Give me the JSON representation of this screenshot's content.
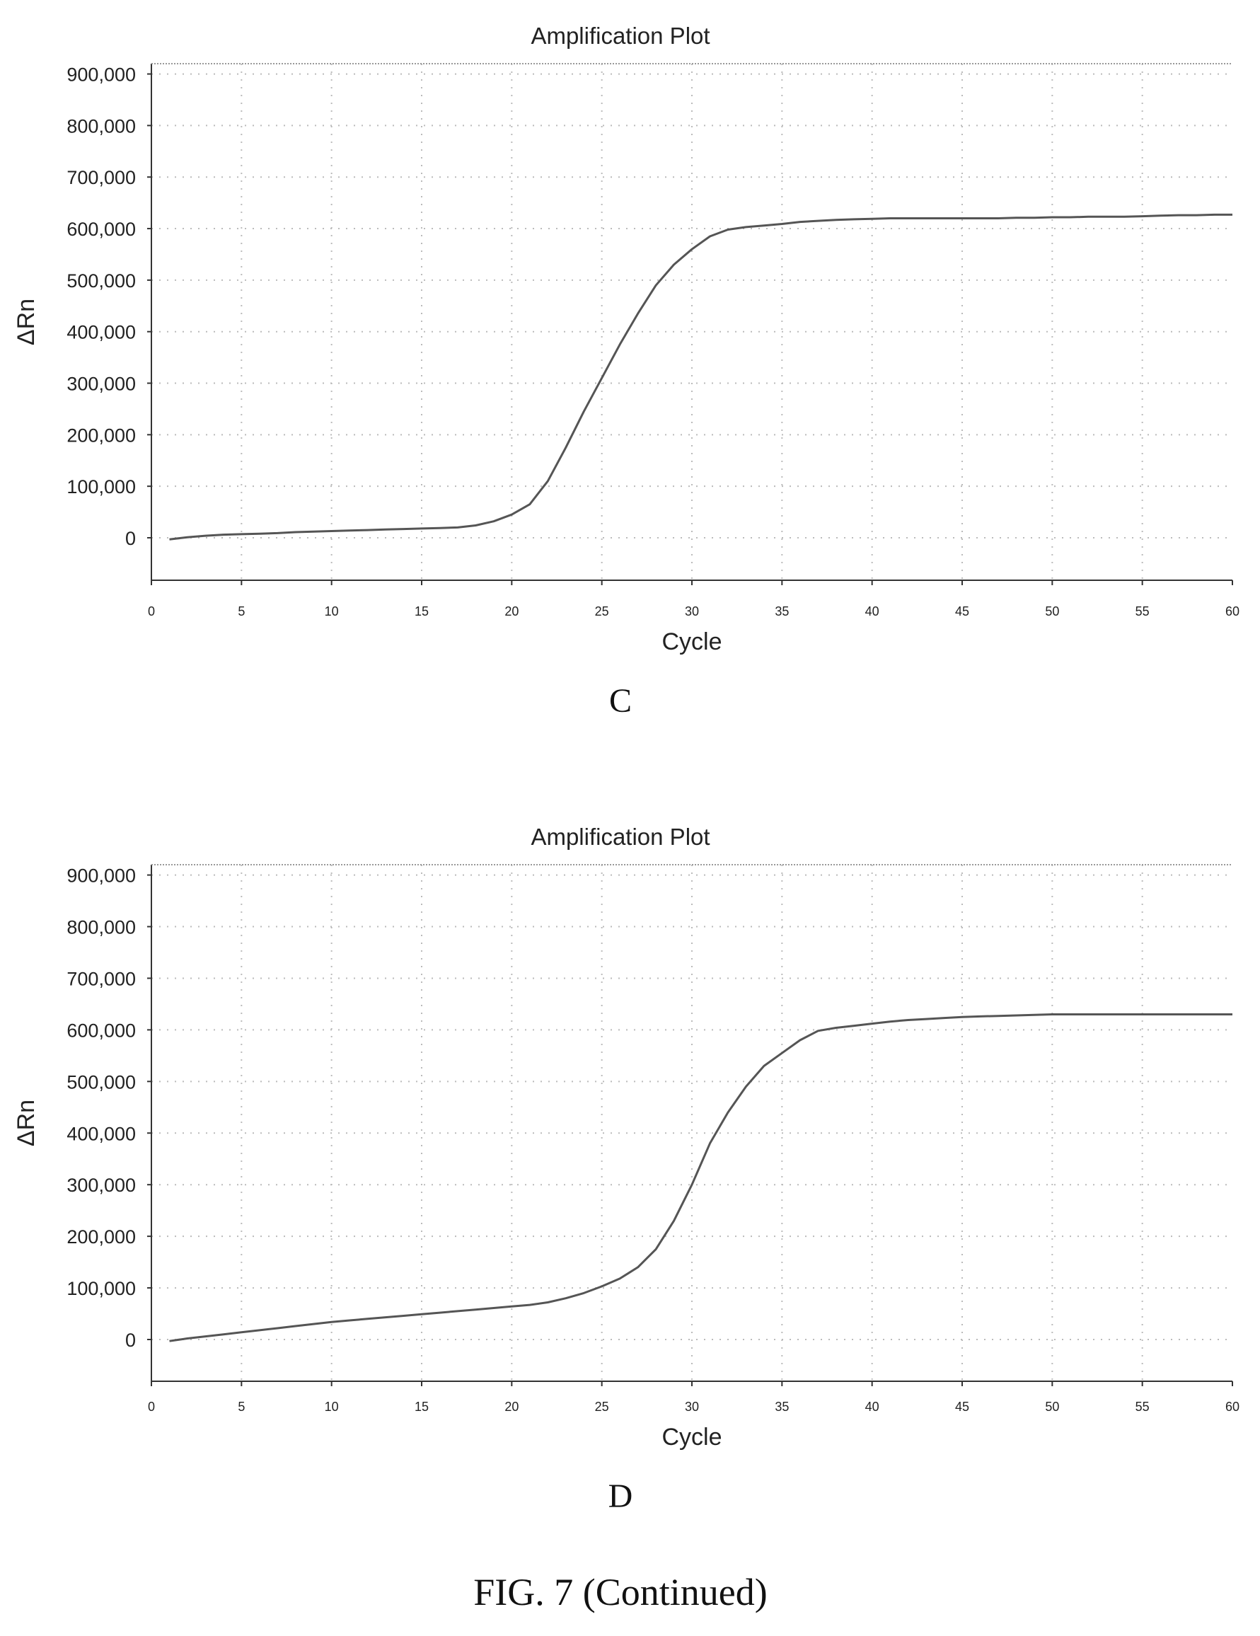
{
  "figure_caption": "FIG. 7 (Continued)",
  "chart_data": [
    {
      "panel_label": "C",
      "type": "line",
      "title": "Amplification Plot",
      "xlabel": "Cycle",
      "ylabel": "ΔRn",
      "xlim": [
        0,
        60
      ],
      "ylim": [
        -80000,
        920000
      ],
      "xticks": [
        0,
        5,
        10,
        15,
        20,
        25,
        30,
        35,
        40,
        45,
        50,
        55,
        60
      ],
      "xtick_labels": [
        "0",
        "5",
        "10",
        "15",
        "20",
        "25",
        "30",
        "35",
        "40",
        "45",
        "50",
        "55",
        "60"
      ],
      "yticks": [
        0,
        100000,
        200000,
        300000,
        400000,
        500000,
        600000,
        700000,
        800000,
        900000
      ],
      "ytick_labels": [
        "0",
        "100,000",
        "200,000",
        "300,000",
        "400,000",
        "500,000",
        "600,000",
        "700,000",
        "800,000",
        "900,000"
      ],
      "grid": true,
      "series": [
        {
          "color": "#555555",
          "x": [
            1,
            2,
            3,
            4,
            5,
            6,
            7,
            8,
            9,
            10,
            11,
            12,
            13,
            14,
            15,
            16,
            17,
            18,
            19,
            20,
            21,
            22,
            23,
            24,
            25,
            26,
            27,
            28,
            29,
            30,
            31,
            32,
            33,
            34,
            35,
            36,
            37,
            38,
            39,
            40,
            41,
            42,
            43,
            44,
            45,
            46,
            47,
            48,
            49,
            50,
            51,
            52,
            53,
            54,
            55,
            56,
            57,
            58,
            59,
            60
          ],
          "y": [
            -3000,
            1000,
            4000,
            6000,
            7000,
            8000,
            9000,
            11000,
            12000,
            13000,
            14000,
            15000,
            16000,
            17000,
            18000,
            19000,
            20000,
            24000,
            32000,
            45000,
            65000,
            110000,
            175000,
            245000,
            310000,
            375000,
            435000,
            490000,
            530000,
            560000,
            585000,
            598000,
            603000,
            606000,
            609000,
            613000,
            615000,
            617000,
            618000,
            619000,
            620000,
            620000,
            620000,
            620000,
            620000,
            620000,
            620000,
            621000,
            621000,
            622000,
            622000,
            623000,
            623000,
            623000,
            624000,
            625000,
            626000,
            626000,
            627000,
            627000
          ]
        }
      ]
    },
    {
      "panel_label": "D",
      "type": "line",
      "title": "Amplification Plot",
      "xlabel": "Cycle",
      "ylabel": "ΔRn",
      "xlim": [
        0,
        60
      ],
      "ylim": [
        -80000,
        920000
      ],
      "xticks": [
        0,
        5,
        10,
        15,
        20,
        25,
        30,
        35,
        40,
        45,
        50,
        55,
        60
      ],
      "xtick_labels": [
        "0",
        "5",
        "10",
        "15",
        "20",
        "25",
        "30",
        "35",
        "40",
        "45",
        "50",
        "55",
        "60"
      ],
      "yticks": [
        0,
        100000,
        200000,
        300000,
        400000,
        500000,
        600000,
        700000,
        800000,
        900000
      ],
      "ytick_labels": [
        "0",
        "100,000",
        "200,000",
        "300,000",
        "400,000",
        "500,000",
        "600,000",
        "700,000",
        "800,000",
        "900,000"
      ],
      "grid": true,
      "series": [
        {
          "color": "#555555",
          "x": [
            1,
            2,
            3,
            4,
            5,
            6,
            7,
            8,
            9,
            10,
            11,
            12,
            13,
            14,
            15,
            16,
            17,
            18,
            19,
            20,
            21,
            22,
            23,
            24,
            25,
            26,
            27,
            28,
            29,
            30,
            31,
            32,
            33,
            34,
            35,
            36,
            37,
            38,
            39,
            40,
            41,
            42,
            43,
            44,
            45,
            46,
            47,
            48,
            49,
            50,
            51,
            52,
            53,
            54,
            55,
            56,
            57,
            58,
            59,
            60
          ],
          "y": [
            -3000,
            2000,
            6000,
            10000,
            14000,
            18000,
            22000,
            26000,
            30000,
            34000,
            37000,
            40000,
            43000,
            46000,
            49000,
            52000,
            55000,
            58000,
            61000,
            64000,
            67000,
            72000,
            80000,
            90000,
            103000,
            118000,
            140000,
            175000,
            230000,
            300000,
            380000,
            440000,
            490000,
            530000,
            555000,
            580000,
            598000,
            604000,
            608000,
            612000,
            616000,
            619000,
            621000,
            623000,
            625000,
            626000,
            627000,
            628000,
            629000,
            630000,
            630000,
            630000,
            630000,
            630000,
            630000,
            630000,
            630000,
            630000,
            630000,
            630000
          ]
        }
      ]
    }
  ]
}
